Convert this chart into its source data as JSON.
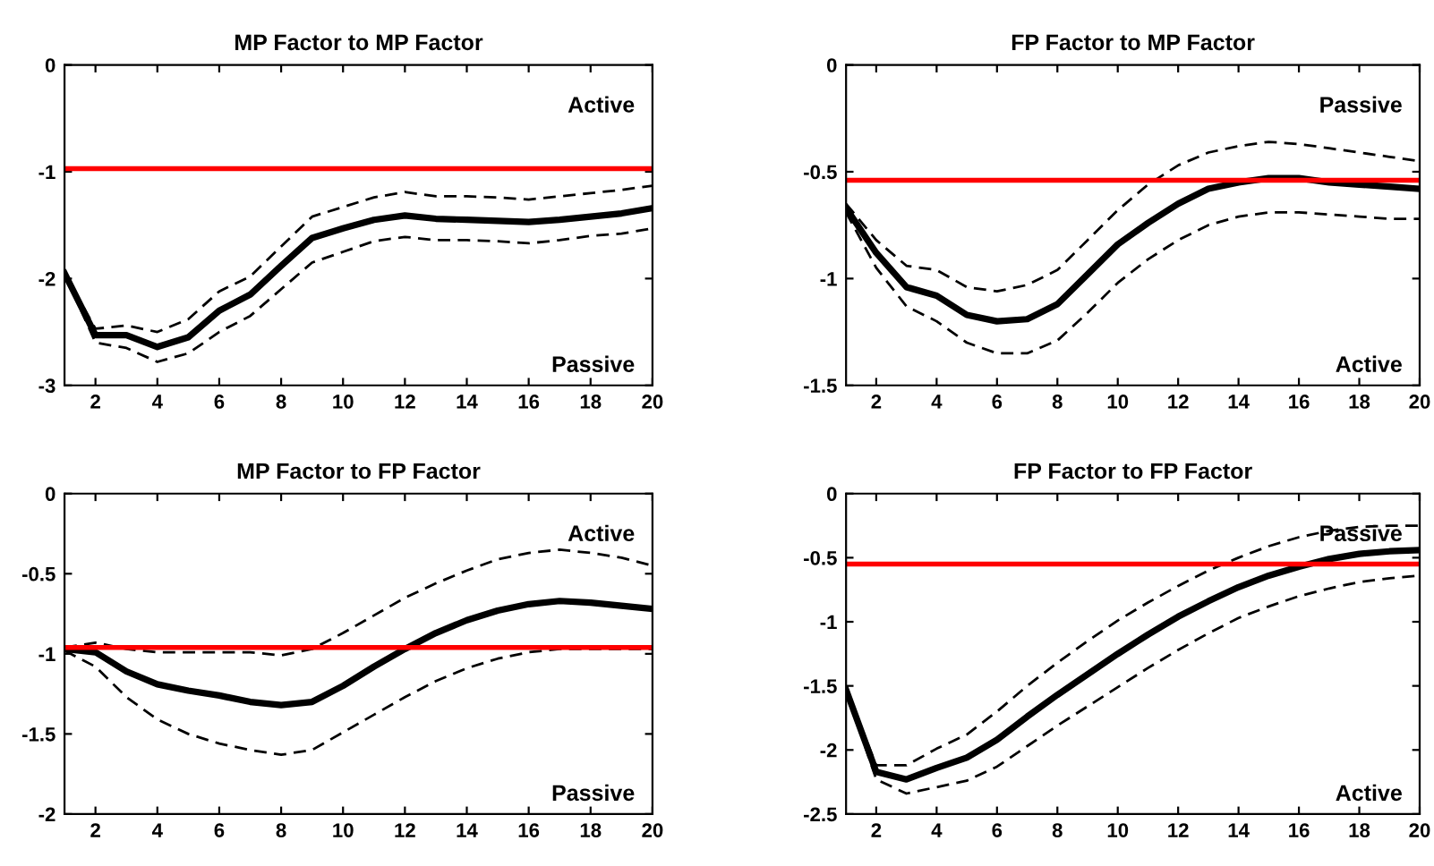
{
  "chart_data": [
    {
      "type": "line",
      "title": "MP Factor to MP Factor",
      "x": [
        1,
        2,
        3,
        4,
        5,
        6,
        7,
        8,
        9,
        10,
        11,
        12,
        13,
        14,
        15,
        16,
        17,
        18,
        19,
        20
      ],
      "xlim": [
        1,
        20
      ],
      "xticks": [
        2,
        4,
        6,
        8,
        10,
        12,
        14,
        16,
        18,
        20
      ],
      "ylim": [
        -3,
        0
      ],
      "yticks": [
        -3,
        -2,
        -1,
        0
      ],
      "grid": false,
      "marker": "none",
      "series": [
        {
          "color": "#000000",
          "line_style": "solid",
          "values": [
            -1.95,
            -2.53,
            -2.53,
            -2.64,
            -2.55,
            -2.3,
            -2.15,
            -1.88,
            -1.62,
            -1.53,
            -1.45,
            -1.41,
            -1.44,
            -1.45,
            -1.46,
            -1.47,
            -1.45,
            -1.42,
            -1.39,
            -1.34
          ]
        },
        {
          "color": "#000000",
          "line_style": "dashed",
          "values": [
            -1.95,
            -2.47,
            -2.44,
            -2.5,
            -2.38,
            -2.12,
            -1.98,
            -1.7,
            -1.42,
            -1.33,
            -1.24,
            -1.19,
            -1.23,
            -1.23,
            -1.24,
            -1.26,
            -1.23,
            -1.2,
            -1.17,
            -1.13
          ]
        },
        {
          "color": "#000000",
          "line_style": "dashed",
          "values": [
            -1.95,
            -2.6,
            -2.65,
            -2.78,
            -2.7,
            -2.5,
            -2.35,
            -2.1,
            -1.85,
            -1.75,
            -1.65,
            -1.61,
            -1.64,
            -1.64,
            -1.65,
            -1.67,
            -1.64,
            -1.6,
            -1.58,
            -1.53
          ]
        }
      ],
      "ref_lines": [
        {
          "axis": "y",
          "value": -0.97,
          "color": "#ff0000"
        }
      ],
      "annotations": [
        "Active",
        "Passive"
      ]
    },
    {
      "type": "line",
      "title": "FP Factor to MP Factor",
      "x": [
        1,
        2,
        3,
        4,
        5,
        6,
        7,
        8,
        9,
        10,
        11,
        12,
        13,
        14,
        15,
        16,
        17,
        18,
        19,
        20
      ],
      "xlim": [
        1,
        20
      ],
      "xticks": [
        2,
        4,
        6,
        8,
        10,
        12,
        14,
        16,
        18,
        20
      ],
      "ylim": [
        -1.5,
        0
      ],
      "yticks": [
        -1.5,
        -1,
        -0.5,
        0
      ],
      "grid": false,
      "marker": "none",
      "series": [
        {
          "color": "#000000",
          "line_style": "solid",
          "values": [
            -0.67,
            -0.88,
            -1.04,
            -1.08,
            -1.17,
            -1.2,
            -1.19,
            -1.12,
            -0.98,
            -0.84,
            -0.74,
            -0.65,
            -0.58,
            -0.55,
            -0.53,
            -0.53,
            -0.55,
            -0.56,
            -0.57,
            -0.58
          ]
        },
        {
          "color": "#000000",
          "line_style": "dashed",
          "values": [
            -0.65,
            -0.82,
            -0.94,
            -0.96,
            -1.04,
            -1.06,
            -1.03,
            -0.96,
            -0.82,
            -0.68,
            -0.56,
            -0.47,
            -0.41,
            -0.38,
            -0.36,
            -0.37,
            -0.39,
            -0.41,
            -0.43,
            -0.45
          ]
        },
        {
          "color": "#000000",
          "line_style": "dashed",
          "values": [
            -0.69,
            -0.95,
            -1.13,
            -1.2,
            -1.3,
            -1.35,
            -1.35,
            -1.29,
            -1.16,
            -1.02,
            -0.91,
            -0.82,
            -0.75,
            -0.71,
            -0.69,
            -0.69,
            -0.7,
            -0.71,
            -0.72,
            -0.72
          ]
        }
      ],
      "ref_lines": [
        {
          "axis": "y",
          "value": -0.54,
          "color": "#ff0000"
        }
      ],
      "annotations": [
        "Passive",
        "Active"
      ]
    },
    {
      "type": "line",
      "title": "MP Factor to FP Factor",
      "x": [
        1,
        2,
        3,
        4,
        5,
        6,
        7,
        8,
        9,
        10,
        11,
        12,
        13,
        14,
        15,
        16,
        17,
        18,
        19,
        20
      ],
      "xlim": [
        1,
        20
      ],
      "xticks": [
        2,
        4,
        6,
        8,
        10,
        12,
        14,
        16,
        18,
        20
      ],
      "ylim": [
        -2,
        0
      ],
      "yticks": [
        -2,
        -1.5,
        -1,
        -0.5,
        0
      ],
      "grid": false,
      "marker": "none",
      "series": [
        {
          "color": "#000000",
          "line_style": "solid",
          "values": [
            -0.97,
            -0.99,
            -1.11,
            -1.19,
            -1.23,
            -1.26,
            -1.3,
            -1.32,
            -1.3,
            -1.2,
            -1.08,
            -0.97,
            -0.87,
            -0.79,
            -0.73,
            -0.69,
            -0.67,
            -0.68,
            -0.7,
            -0.72
          ]
        },
        {
          "color": "#000000",
          "line_style": "dashed",
          "values": [
            -0.96,
            -0.93,
            -0.97,
            -0.99,
            -0.99,
            -0.99,
            -0.99,
            -1.01,
            -0.97,
            -0.87,
            -0.76,
            -0.65,
            -0.56,
            -0.48,
            -0.41,
            -0.37,
            -0.35,
            -0.37,
            -0.4,
            -0.45
          ]
        },
        {
          "color": "#000000",
          "line_style": "dashed",
          "values": [
            -0.98,
            -1.08,
            -1.27,
            -1.41,
            -1.5,
            -1.56,
            -1.6,
            -1.63,
            -1.6,
            -1.49,
            -1.38,
            -1.27,
            -1.17,
            -1.09,
            -1.03,
            -0.99,
            -0.97,
            -0.97,
            -0.97,
            -0.97
          ]
        }
      ],
      "ref_lines": [
        {
          "axis": "y",
          "value": -0.96,
          "color": "#ff0000"
        }
      ],
      "annotations": [
        "Active",
        "Passive"
      ]
    },
    {
      "type": "line",
      "title": "FP Factor to FP Factor",
      "x": [
        1,
        2,
        3,
        4,
        5,
        6,
        7,
        8,
        9,
        10,
        11,
        12,
        13,
        14,
        15,
        16,
        17,
        18,
        19,
        20
      ],
      "xlim": [
        1,
        20
      ],
      "xticks": [
        2,
        4,
        6,
        8,
        10,
        12,
        14,
        16,
        18,
        20
      ],
      "ylim": [
        -2.5,
        0
      ],
      "yticks": [
        -2.5,
        -2,
        -1.5,
        -1,
        -0.5,
        0
      ],
      "grid": false,
      "marker": "none",
      "series": [
        {
          "color": "#000000",
          "line_style": "solid",
          "values": [
            -1.53,
            -2.17,
            -2.23,
            -2.14,
            -2.06,
            -1.92,
            -1.74,
            -1.57,
            -1.41,
            -1.25,
            -1.1,
            -0.96,
            -0.84,
            -0.73,
            -0.64,
            -0.57,
            -0.51,
            -0.47,
            -0.45,
            -0.44
          ]
        },
        {
          "color": "#000000",
          "line_style": "dashed",
          "values": [
            -1.53,
            -2.12,
            -2.12,
            -1.99,
            -1.88,
            -1.7,
            -1.5,
            -1.32,
            -1.15,
            -0.99,
            -0.85,
            -0.72,
            -0.6,
            -0.5,
            -0.41,
            -0.34,
            -0.29,
            -0.26,
            -0.25,
            -0.25
          ]
        },
        {
          "color": "#000000",
          "line_style": "dashed",
          "values": [
            -1.53,
            -2.23,
            -2.34,
            -2.29,
            -2.24,
            -2.13,
            -1.97,
            -1.81,
            -1.66,
            -1.51,
            -1.36,
            -1.22,
            -1.09,
            -0.97,
            -0.88,
            -0.8,
            -0.74,
            -0.69,
            -0.66,
            -0.64
          ]
        }
      ],
      "ref_lines": [
        {
          "axis": "y",
          "value": -0.55,
          "color": "#ff0000"
        }
      ],
      "annotations": [
        "Passive",
        "Active"
      ]
    }
  ]
}
